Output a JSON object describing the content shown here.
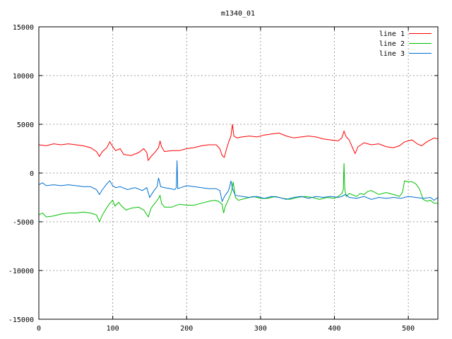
{
  "chart_data": {
    "type": "line",
    "title": "m1340_01",
    "xlabel": "",
    "ylabel": "",
    "xlim": [
      0,
      540
    ],
    "ylim": [
      -15000,
      15000
    ],
    "x_ticks": [
      "0",
      "100",
      "200",
      "300",
      "400",
      "500"
    ],
    "x_tick_values": [
      0,
      100,
      200,
      300,
      400,
      500
    ],
    "y_ticks": [
      "15000",
      "10000",
      "5000",
      "0",
      "-5000",
      "-10000",
      "-15000"
    ],
    "y_tick_values": [
      15000,
      10000,
      5000,
      0,
      -5000,
      -10000,
      -15000
    ],
    "grid": true,
    "legend_position": "top-right",
    "series": [
      {
        "name": "line 1",
        "color": "#ff0000",
        "points": [
          [
            0,
            2900
          ],
          [
            10,
            2800
          ],
          [
            20,
            3000
          ],
          [
            30,
            2900
          ],
          [
            40,
            3000
          ],
          [
            50,
            2900
          ],
          [
            60,
            2800
          ],
          [
            70,
            2600
          ],
          [
            78,
            2200
          ],
          [
            82,
            1700
          ],
          [
            86,
            2200
          ],
          [
            92,
            2600
          ],
          [
            96,
            3200
          ],
          [
            100,
            2700
          ],
          [
            104,
            2300
          ],
          [
            110,
            2500
          ],
          [
            115,
            1900
          ],
          [
            125,
            1800
          ],
          [
            135,
            2100
          ],
          [
            142,
            2500
          ],
          [
            146,
            2100
          ],
          [
            148,
            1300
          ],
          [
            152,
            1700
          ],
          [
            158,
            2200
          ],
          [
            162,
            2600
          ],
          [
            164,
            3300
          ],
          [
            166,
            2700
          ],
          [
            170,
            2200
          ],
          [
            180,
            2300
          ],
          [
            190,
            2300
          ],
          [
            200,
            2500
          ],
          [
            210,
            2600
          ],
          [
            220,
            2800
          ],
          [
            230,
            2900
          ],
          [
            240,
            2900
          ],
          [
            245,
            2500
          ],
          [
            248,
            1800
          ],
          [
            251,
            1600
          ],
          [
            254,
            2500
          ],
          [
            257,
            3200
          ],
          [
            260,
            3800
          ],
          [
            262,
            5000
          ],
          [
            264,
            3800
          ],
          [
            268,
            3600
          ],
          [
            275,
            3700
          ],
          [
            285,
            3800
          ],
          [
            295,
            3700
          ],
          [
            305,
            3900
          ],
          [
            315,
            4000
          ],
          [
            325,
            4100
          ],
          [
            335,
            3800
          ],
          [
            345,
            3600
          ],
          [
            355,
            3700
          ],
          [
            365,
            3800
          ],
          [
            375,
            3700
          ],
          [
            385,
            3500
          ],
          [
            395,
            3400
          ],
          [
            405,
            3300
          ],
          [
            410,
            3600
          ],
          [
            413,
            4300
          ],
          [
            416,
            3700
          ],
          [
            420,
            3400
          ],
          [
            425,
            2500
          ],
          [
            428,
            2000
          ],
          [
            432,
            2700
          ],
          [
            436,
            2900
          ],
          [
            440,
            3100
          ],
          [
            445,
            3000
          ],
          [
            450,
            2900
          ],
          [
            460,
            3000
          ],
          [
            470,
            2700
          ],
          [
            480,
            2600
          ],
          [
            488,
            2800
          ],
          [
            495,
            3200
          ],
          [
            505,
            3400
          ],
          [
            512,
            3000
          ],
          [
            518,
            2800
          ],
          [
            525,
            3200
          ],
          [
            530,
            3400
          ],
          [
            535,
            3600
          ],
          [
            540,
            3500
          ]
        ]
      },
      {
        "name": "line 2",
        "color": "#00c000",
        "points": [
          [
            0,
            -4300
          ],
          [
            5,
            -4100
          ],
          [
            10,
            -4500
          ],
          [
            20,
            -4400
          ],
          [
            30,
            -4200
          ],
          [
            40,
            -4100
          ],
          [
            50,
            -4100
          ],
          [
            60,
            -4000
          ],
          [
            70,
            -4100
          ],
          [
            78,
            -4300
          ],
          [
            82,
            -5000
          ],
          [
            86,
            -4300
          ],
          [
            90,
            -3800
          ],
          [
            95,
            -3200
          ],
          [
            100,
            -2800
          ],
          [
            103,
            -3400
          ],
          [
            108,
            -3000
          ],
          [
            112,
            -3400
          ],
          [
            118,
            -3800
          ],
          [
            125,
            -3600
          ],
          [
            135,
            -3500
          ],
          [
            142,
            -3800
          ],
          [
            148,
            -4500
          ],
          [
            152,
            -3600
          ],
          [
            158,
            -3000
          ],
          [
            162,
            -2600
          ],
          [
            164,
            -2300
          ],
          [
            166,
            -3100
          ],
          [
            170,
            -3500
          ],
          [
            180,
            -3500
          ],
          [
            190,
            -3200
          ],
          [
            200,
            -3300
          ],
          [
            210,
            -3300
          ],
          [
            220,
            -3100
          ],
          [
            230,
            -2900
          ],
          [
            238,
            -2800
          ],
          [
            243,
            -2900
          ],
          [
            248,
            -3200
          ],
          [
            250,
            -4100
          ],
          [
            252,
            -3500
          ],
          [
            256,
            -2800
          ],
          [
            259,
            -2300
          ],
          [
            261,
            -1800
          ],
          [
            263,
            -900
          ],
          [
            266,
            -2500
          ],
          [
            270,
            -2800
          ],
          [
            280,
            -2600
          ],
          [
            290,
            -2400
          ],
          [
            300,
            -2600
          ],
          [
            310,
            -2600
          ],
          [
            320,
            -2400
          ],
          [
            330,
            -2600
          ],
          [
            340,
            -2700
          ],
          [
            350,
            -2500
          ],
          [
            360,
            -2400
          ],
          [
            370,
            -2500
          ],
          [
            380,
            -2700
          ],
          [
            390,
            -2500
          ],
          [
            400,
            -2600
          ],
          [
            405,
            -2400
          ],
          [
            410,
            -2100
          ],
          [
            412,
            -1700
          ],
          [
            413,
            1000
          ],
          [
            414,
            -1700
          ],
          [
            416,
            -2400
          ],
          [
            420,
            -2100
          ],
          [
            430,
            -2400
          ],
          [
            435,
            -2100
          ],
          [
            440,
            -2200
          ],
          [
            445,
            -1900
          ],
          [
            450,
            -1800
          ],
          [
            455,
            -2000
          ],
          [
            460,
            -2200
          ],
          [
            470,
            -2000
          ],
          [
            480,
            -2200
          ],
          [
            488,
            -2400
          ],
          [
            492,
            -2000
          ],
          [
            495,
            -800
          ],
          [
            500,
            -900
          ],
          [
            505,
            -900
          ],
          [
            510,
            -1100
          ],
          [
            515,
            -1600
          ],
          [
            520,
            -2700
          ],
          [
            525,
            -2900
          ],
          [
            530,
            -2800
          ],
          [
            535,
            -3100
          ],
          [
            540,
            -3100
          ]
        ]
      },
      {
        "name": "line 3",
        "color": "#0070d0",
        "points": [
          [
            0,
            -1200
          ],
          [
            5,
            -1000
          ],
          [
            10,
            -1300
          ],
          [
            20,
            -1200
          ],
          [
            30,
            -1300
          ],
          [
            40,
            -1200
          ],
          [
            50,
            -1300
          ],
          [
            60,
            -1400
          ],
          [
            70,
            -1400
          ],
          [
            78,
            -1700
          ],
          [
            82,
            -2200
          ],
          [
            86,
            -1700
          ],
          [
            92,
            -1100
          ],
          [
            96,
            -800
          ],
          [
            100,
            -1300
          ],
          [
            104,
            -1500
          ],
          [
            110,
            -1400
          ],
          [
            120,
            -1700
          ],
          [
            130,
            -1500
          ],
          [
            140,
            -1800
          ],
          [
            146,
            -1500
          ],
          [
            150,
            -2500
          ],
          [
            155,
            -1900
          ],
          [
            160,
            -1400
          ],
          [
            162,
            -500
          ],
          [
            165,
            -1400
          ],
          [
            170,
            -1500
          ],
          [
            178,
            -1600
          ],
          [
            184,
            -1700
          ],
          [
            186,
            -1500
          ],
          [
            187,
            1300
          ],
          [
            188,
            -1600
          ],
          [
            192,
            -1500
          ],
          [
            200,
            -1300
          ],
          [
            210,
            -1400
          ],
          [
            220,
            -1500
          ],
          [
            230,
            -1600
          ],
          [
            240,
            -1600
          ],
          [
            245,
            -1800
          ],
          [
            248,
            -2900
          ],
          [
            252,
            -2300
          ],
          [
            256,
            -1900
          ],
          [
            258,
            -1500
          ],
          [
            260,
            -800
          ],
          [
            262,
            -1600
          ],
          [
            266,
            -2300
          ],
          [
            275,
            -2400
          ],
          [
            285,
            -2500
          ],
          [
            295,
            -2400
          ],
          [
            305,
            -2600
          ],
          [
            315,
            -2400
          ],
          [
            325,
            -2500
          ],
          [
            335,
            -2700
          ],
          [
            345,
            -2500
          ],
          [
            355,
            -2400
          ],
          [
            365,
            -2600
          ],
          [
            375,
            -2400
          ],
          [
            385,
            -2500
          ],
          [
            395,
            -2400
          ],
          [
            405,
            -2500
          ],
          [
            410,
            -2400
          ],
          [
            415,
            -2200
          ],
          [
            420,
            -2500
          ],
          [
            430,
            -2600
          ],
          [
            440,
            -2400
          ],
          [
            450,
            -2700
          ],
          [
            460,
            -2500
          ],
          [
            470,
            -2600
          ],
          [
            480,
            -2500
          ],
          [
            490,
            -2600
          ],
          [
            500,
            -2400
          ],
          [
            510,
            -2500
          ],
          [
            520,
            -2600
          ],
          [
            530,
            -2500
          ],
          [
            535,
            -2800
          ],
          [
            540,
            -2500
          ]
        ]
      }
    ]
  }
}
